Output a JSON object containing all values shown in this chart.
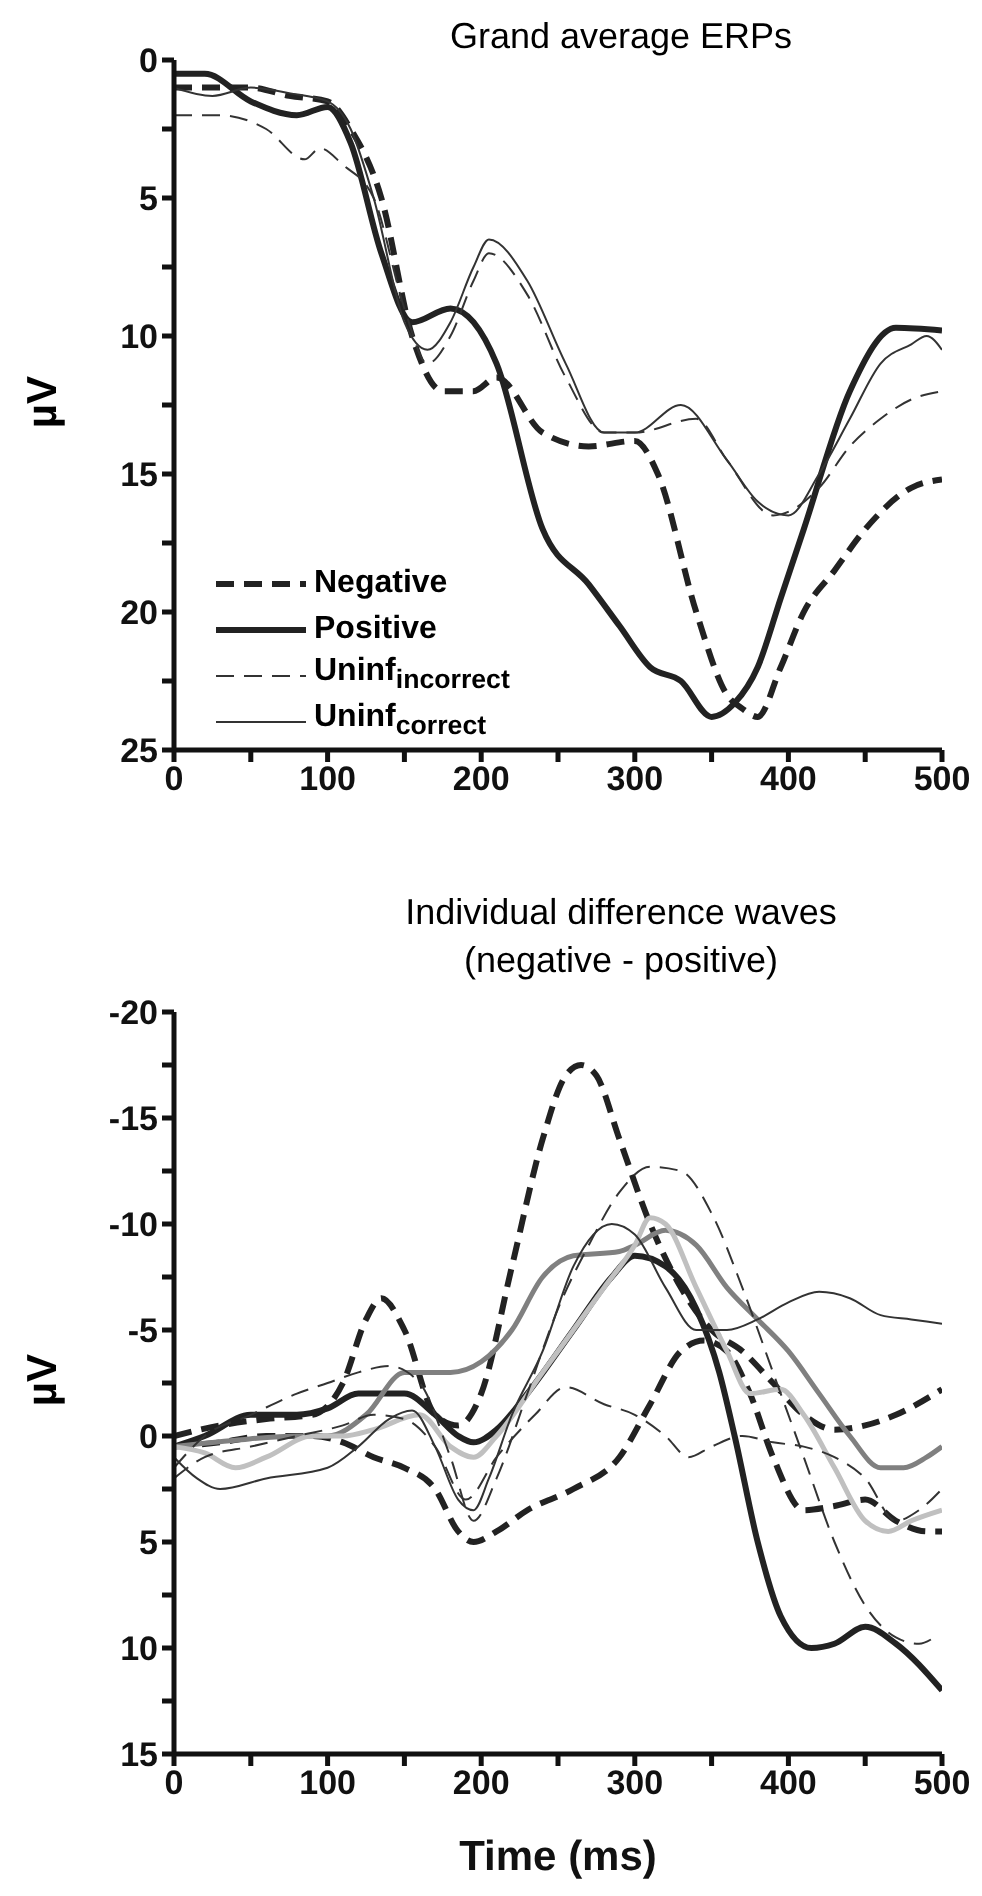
{
  "chart_data": [
    {
      "type": "line",
      "title": "Grand average ERPs",
      "ylabel": "µV",
      "xlim": [
        0,
        500
      ],
      "xticks": [
        0,
        {
          "value": 50,
          "label": null
        },
        100,
        {
          "value": 150,
          "label": null
        },
        200,
        {
          "value": 250,
          "label": null
        },
        300,
        {
          "value": 350,
          "label": null
        },
        400,
        {
          "value": 450,
          "label": null
        },
        500
      ],
      "ylim": [
        25,
        0
      ],
      "yticks": [
        0,
        {
          "value": 2.5,
          "label": null
        },
        5,
        {
          "value": 7.5,
          "label": null
        },
        10,
        {
          "value": 12.5,
          "label": null
        },
        15,
        {
          "value": 17.5,
          "label": null
        },
        20,
        {
          "value": 22.5,
          "label": null
        },
        25
      ],
      "grid": false,
      "legend": "bottom left",
      "series": [
        {
          "name": "Negative",
          "color": "#222222",
          "line_style": "dashed",
          "x": [
            0,
            25,
            50,
            75,
            100,
            115,
            135,
            155,
            175,
            195,
            210,
            240,
            270,
            300,
            315,
            340,
            360,
            370,
            380,
            395,
            410,
            430,
            450,
            480,
            500
          ],
          "values": [
            1,
            1,
            1,
            1.3,
            1.5,
            2.5,
            5,
            10,
            12,
            12,
            11.5,
            13.5,
            14,
            13.8,
            15,
            20,
            23,
            23.5,
            23.8,
            22,
            20,
            18.5,
            17,
            15.5,
            15.2
          ]
        },
        {
          "name": "Positive",
          "color": "#222222",
          "line_style": "solid",
          "x": [
            0,
            20,
            50,
            80,
            100,
            115,
            135,
            155,
            180,
            195,
            210,
            240,
            270,
            290,
            310,
            330,
            350,
            365,
            380,
            395,
            410,
            440,
            470,
            500
          ],
          "values": [
            0.5,
            0.5,
            1.5,
            2,
            1.7,
            3,
            7,
            9.5,
            9,
            9.5,
            11,
            17,
            19,
            20.5,
            22,
            22.5,
            23.8,
            23.3,
            22,
            19.5,
            17,
            12,
            9.7,
            9.8
          ]
        },
        {
          "name": "Uninf$_{incorrect}$",
          "color": "#333333",
          "line_style": "dashed",
          "x": [
            0,
            30,
            60,
            85,
            95,
            110,
            130,
            150,
            165,
            180,
            195,
            205,
            230,
            255,
            280,
            300,
            340,
            360,
            390,
            420,
            440,
            460,
            480,
            500
          ],
          "values": [
            2,
            2,
            2.5,
            3.6,
            3.2,
            3.8,
            5,
            9,
            11,
            10,
            8,
            7,
            8.5,
            11.5,
            13.5,
            13.5,
            13,
            14.5,
            16.5,
            15.5,
            14,
            13,
            12.3,
            12
          ]
        },
        {
          "name": "Uninf$_{correct}$",
          "color": "#333333",
          "line_style": "solid",
          "x": [
            0,
            25,
            50,
            75,
            100,
            115,
            130,
            150,
            165,
            180,
            195,
            205,
            230,
            255,
            280,
            300,
            330,
            360,
            380,
            400,
            420,
            440,
            460,
            480,
            490,
            500
          ],
          "values": [
            1,
            1.3,
            1,
            1.2,
            1.5,
            2.5,
            5,
            9.5,
            10.5,
            9.5,
            7.5,
            6.5,
            8,
            11,
            13.5,
            13.5,
            12.5,
            14.5,
            16,
            16.5,
            15,
            13,
            11,
            10.3,
            10,
            10.5
          ]
        }
      ]
    },
    {
      "type": "line",
      "title": "Individual difference waves",
      "subtitle": "(negative - positive)",
      "xlabel": "Time (ms)",
      "ylabel": "µV",
      "xlim": [
        0,
        500
      ],
      "xticks": [
        0,
        {
          "value": 50,
          "label": null
        },
        100,
        {
          "value": 150,
          "label": null
        },
        200,
        {
          "value": 250,
          "label": null
        },
        300,
        {
          "value": 350,
          "label": null
        },
        400,
        {
          "value": 450,
          "label": null
        },
        500
      ],
      "ylim": [
        15,
        -20
      ],
      "yticks": [
        -20,
        {
          "value": -17.5,
          "label": null
        },
        -15,
        {
          "value": -12.5,
          "label": null
        },
        -10,
        {
          "value": -7.5,
          "label": null
        },
        -5,
        {
          "value": -2.5,
          "label": null
        },
        0,
        {
          "value": 2.5,
          "label": null
        },
        5,
        {
          "value": 7.5,
          "label": null
        },
        10,
        {
          "value": 12.5,
          "label": null
        },
        15
      ],
      "grid": false,
      "legend": false,
      "series": [
        {
          "color": "#222222",
          "line_style": "dashed",
          "x": [
            0,
            30,
            60,
            90,
            110,
            125,
            135,
            150,
            170,
            185,
            200,
            220,
            240,
            255,
            265,
            275,
            290,
            310,
            330,
            350,
            370,
            390,
            410,
            430,
            450,
            470,
            500
          ],
          "values": [
            0,
            -0.5,
            -0.8,
            -1,
            -2.5,
            -5.5,
            -6.5,
            -5,
            -1,
            -0.5,
            -2,
            -8,
            -14,
            -17,
            -17.5,
            -17,
            -14,
            -10,
            -7,
            -5,
            -4,
            -2.5,
            -1,
            -0.3,
            -0.5,
            -1,
            -2.2
          ]
        },
        {
          "color": "#222222",
          "line_style": "dashed",
          "x": [
            0,
            30,
            60,
            90,
            110,
            130,
            150,
            170,
            185,
            195,
            210,
            230,
            260,
            290,
            310,
            330,
            345,
            360,
            375,
            390,
            410,
            430,
            450,
            470,
            490,
            500
          ],
          "values": [
            0.5,
            0.3,
            0,
            0,
            0.3,
            1,
            1.5,
            2.5,
            4.5,
            5,
            4.5,
            3.5,
            2.5,
            1,
            -1.5,
            -4,
            -4.5,
            -4,
            -2,
            1,
            3.5,
            3.3,
            3,
            4,
            4.5,
            4.5
          ]
        },
        {
          "color": "#222222",
          "line_style": "solid",
          "x": [
            0,
            20,
            50,
            80,
            100,
            120,
            150,
            170,
            185,
            195,
            210,
            230,
            260,
            285,
            300,
            320,
            340,
            355,
            365,
            380,
            395,
            415,
            430,
            450,
            470,
            500
          ],
          "values": [
            0.5,
            0,
            -1,
            -1,
            -1.3,
            -2,
            -2,
            -1,
            0,
            0.3,
            -0.3,
            -2,
            -5,
            -7.5,
            -8.5,
            -8,
            -6,
            -3,
            0,
            5,
            8.5,
            10,
            9.8,
            9,
            9.8,
            12
          ]
        },
        {
          "color": "#808080",
          "line_style": "solid",
          "x": [
            0,
            40,
            80,
            100,
            125,
            150,
            180,
            200,
            220,
            240,
            260,
            290,
            300,
            320,
            340,
            360,
            380,
            400,
            420,
            440,
            460,
            475,
            490,
            500
          ],
          "values": [
            0.5,
            0.2,
            0,
            0,
            -1,
            -3,
            -3,
            -3.5,
            -5,
            -7.5,
            -8.5,
            -8.7,
            -9,
            -9.7,
            -9,
            -7,
            -5.5,
            -4,
            -2,
            0,
            1.5,
            1.5,
            1,
            0.5
          ]
        },
        {
          "color": "#c0c0c0",
          "line_style": "solid",
          "x": [
            0,
            20,
            40,
            60,
            90,
            110,
            130,
            160,
            180,
            195,
            210,
            240,
            260,
            280,
            300,
            310,
            320,
            340,
            360,
            375,
            395,
            410,
            430,
            450,
            465,
            480,
            500
          ],
          "values": [
            0.5,
            0.8,
            1.5,
            1,
            0,
            0,
            -0.3,
            -1,
            0.5,
            1,
            0,
            -3,
            -5,
            -7,
            -9,
            -10.3,
            -10,
            -7,
            -4,
            -2,
            -2.2,
            -1,
            1.5,
            4,
            4.5,
            4,
            3.5
          ]
        },
        {
          "color": "#333333",
          "line_style": "solid",
          "x": [
            0,
            15,
            30,
            60,
            100,
            120,
            140,
            155,
            170,
            185,
            195,
            205,
            220,
            240,
            260,
            285,
            300,
            320,
            340,
            360,
            380,
            400,
            420,
            440,
            460,
            480,
            500
          ],
          "values": [
            1,
            2,
            2.5,
            2,
            1.5,
            0.5,
            -0.8,
            -1.2,
            0.5,
            3,
            3.5,
            2,
            -1,
            -4,
            -8,
            -10,
            -9.5,
            -7,
            -5,
            -5,
            -5.5,
            -6.3,
            -6.8,
            -6.5,
            -5.7,
            -5.5,
            -5.3
          ]
        },
        {
          "color": "#333333",
          "line_style": "dashed",
          "x": [
            0,
            20,
            50,
            80,
            100,
            120,
            140,
            160,
            180,
            195,
            210,
            230,
            250,
            270,
            290,
            310,
            330,
            350,
            370,
            390,
            410,
            430,
            450,
            470,
            485,
            495
          ],
          "values": [
            1.5,
            0,
            -1,
            -2,
            -2.5,
            -3,
            -3.3,
            -2.5,
            1,
            4,
            2,
            -2,
            -6,
            -9,
            -11.5,
            -12.7,
            -12.5,
            -10.5,
            -7,
            -3,
            1,
            5,
            8,
            9.5,
            9.8,
            9.5
          ]
        },
        {
          "color": "#333333",
          "line_style": "dashed",
          "x": [
            0,
            20,
            50,
            80,
            110,
            130,
            150,
            170,
            190,
            210,
            235,
            255,
            280,
            300,
            320,
            335,
            350,
            370,
            390,
            410,
            430,
            450,
            470,
            485,
            500
          ],
          "values": [
            2,
            1,
            0.5,
            0,
            -0.5,
            -1,
            -0.8,
            0.5,
            3,
            1,
            -1,
            -2.3,
            -1.5,
            -1,
            0,
            1,
            0.5,
            0,
            0.3,
            0.5,
            1,
            2,
            4,
            3.5,
            2.5
          ]
        }
      ]
    }
  ]
}
